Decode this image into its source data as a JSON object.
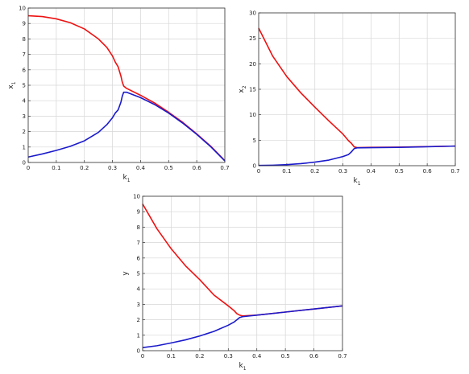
{
  "chart_data": [
    {
      "type": "line",
      "xlabel": "k",
      "xlabel_sub": "1",
      "ylabel": "x",
      "ylabel_sub": "1",
      "xlim": [
        0,
        0.7
      ],
      "ylim": [
        0,
        10
      ],
      "xticks": [
        "0",
        "0.1",
        "0.2",
        "0.3",
        "0.4",
        "0.5",
        "0.6",
        "0.7"
      ],
      "yticks": [
        "0",
        "1",
        "2",
        "3",
        "4",
        "5",
        "6",
        "7",
        "8",
        "9",
        "10"
      ],
      "grid": true,
      "series": [
        {
          "color": "#ee1111",
          "x": [
            0,
            0.05,
            0.1,
            0.15,
            0.2,
            0.25,
            0.28,
            0.3,
            0.31,
            0.32,
            0.33,
            0.335,
            0.34,
            0.35,
            0.4,
            0.45,
            0.5,
            0.55,
            0.6,
            0.65,
            0.7
          ],
          "y": [
            9.5,
            9.45,
            9.3,
            9.05,
            8.65,
            8.0,
            7.45,
            6.9,
            6.5,
            6.2,
            5.6,
            5.2,
            4.95,
            4.8,
            4.35,
            3.85,
            3.25,
            2.6,
            1.85,
            1.05,
            0.12
          ]
        },
        {
          "color": "#1a1acc",
          "x": [
            0,
            0.05,
            0.1,
            0.15,
            0.2,
            0.25,
            0.28,
            0.3,
            0.31,
            0.32,
            0.33,
            0.335,
            0.34,
            0.35,
            0.4,
            0.45,
            0.5,
            0.55,
            0.6,
            0.65,
            0.7
          ],
          "y": [
            0.35,
            0.55,
            0.78,
            1.05,
            1.4,
            1.95,
            2.45,
            2.9,
            3.2,
            3.4,
            3.9,
            4.3,
            4.55,
            4.55,
            4.2,
            3.75,
            3.2,
            2.55,
            1.82,
            1.02,
            0.1
          ]
        }
      ]
    },
    {
      "type": "line",
      "xlabel": "k",
      "xlabel_sub": "1",
      "ylabel": "x",
      "ylabel_sub": "2",
      "xlim": [
        0,
        0.7
      ],
      "ylim": [
        0,
        30
      ],
      "xticks": [
        "0",
        "0.1",
        "0.2",
        "0.3",
        "0.4",
        "0.5",
        "0.6",
        "0.7"
      ],
      "yticks": [
        "0",
        "5",
        "10",
        "15",
        "20",
        "25",
        "30"
      ],
      "grid": true,
      "series": [
        {
          "color": "#ee1111",
          "x": [
            0,
            0.05,
            0.1,
            0.15,
            0.2,
            0.25,
            0.3,
            0.32,
            0.33,
            0.34,
            0.35,
            0.4,
            0.5,
            0.6,
            0.7
          ],
          "y": [
            27,
            21.5,
            17.5,
            14.3,
            11.5,
            8.8,
            6.2,
            4.9,
            4.4,
            3.7,
            3.55,
            3.6,
            3.65,
            3.75,
            3.85
          ]
        },
        {
          "color": "#1a1acc",
          "x": [
            0,
            0.05,
            0.1,
            0.15,
            0.2,
            0.25,
            0.3,
            0.32,
            0.33,
            0.34,
            0.35,
            0.4,
            0.5,
            0.6,
            0.7
          ],
          "y": [
            0.05,
            0.1,
            0.2,
            0.4,
            0.7,
            1.1,
            1.8,
            2.2,
            2.7,
            3.35,
            3.5,
            3.55,
            3.6,
            3.72,
            3.85
          ]
        }
      ]
    },
    {
      "type": "line",
      "xlabel": "k",
      "xlabel_sub": "1",
      "ylabel": "y",
      "ylabel_sub": "",
      "xlim": [
        0,
        0.7
      ],
      "ylim": [
        0,
        10
      ],
      "xticks": [
        "0",
        "0.1",
        "0.2",
        "0.3",
        "0.4",
        "0.5",
        "0.6",
        "0.7"
      ],
      "yticks": [
        "0",
        "1",
        "2",
        "3",
        "4",
        "5",
        "6",
        "7",
        "8",
        "9",
        "10"
      ],
      "grid": true,
      "series": [
        {
          "color": "#ee1111",
          "x": [
            0,
            0.05,
            0.1,
            0.15,
            0.2,
            0.25,
            0.3,
            0.32,
            0.33,
            0.34,
            0.35,
            0.4,
            0.5,
            0.6,
            0.7
          ],
          "y": [
            9.5,
            7.9,
            6.6,
            5.5,
            4.6,
            3.6,
            2.9,
            2.6,
            2.4,
            2.3,
            2.25,
            2.3,
            2.5,
            2.7,
            2.9
          ]
        },
        {
          "color": "#1a1acc",
          "x": [
            0,
            0.05,
            0.1,
            0.15,
            0.2,
            0.25,
            0.3,
            0.32,
            0.33,
            0.34,
            0.35,
            0.4,
            0.5,
            0.6,
            0.7
          ],
          "y": [
            0.2,
            0.32,
            0.5,
            0.7,
            0.95,
            1.25,
            1.65,
            1.85,
            2.0,
            2.15,
            2.2,
            2.3,
            2.5,
            2.7,
            2.9
          ]
        }
      ]
    }
  ]
}
